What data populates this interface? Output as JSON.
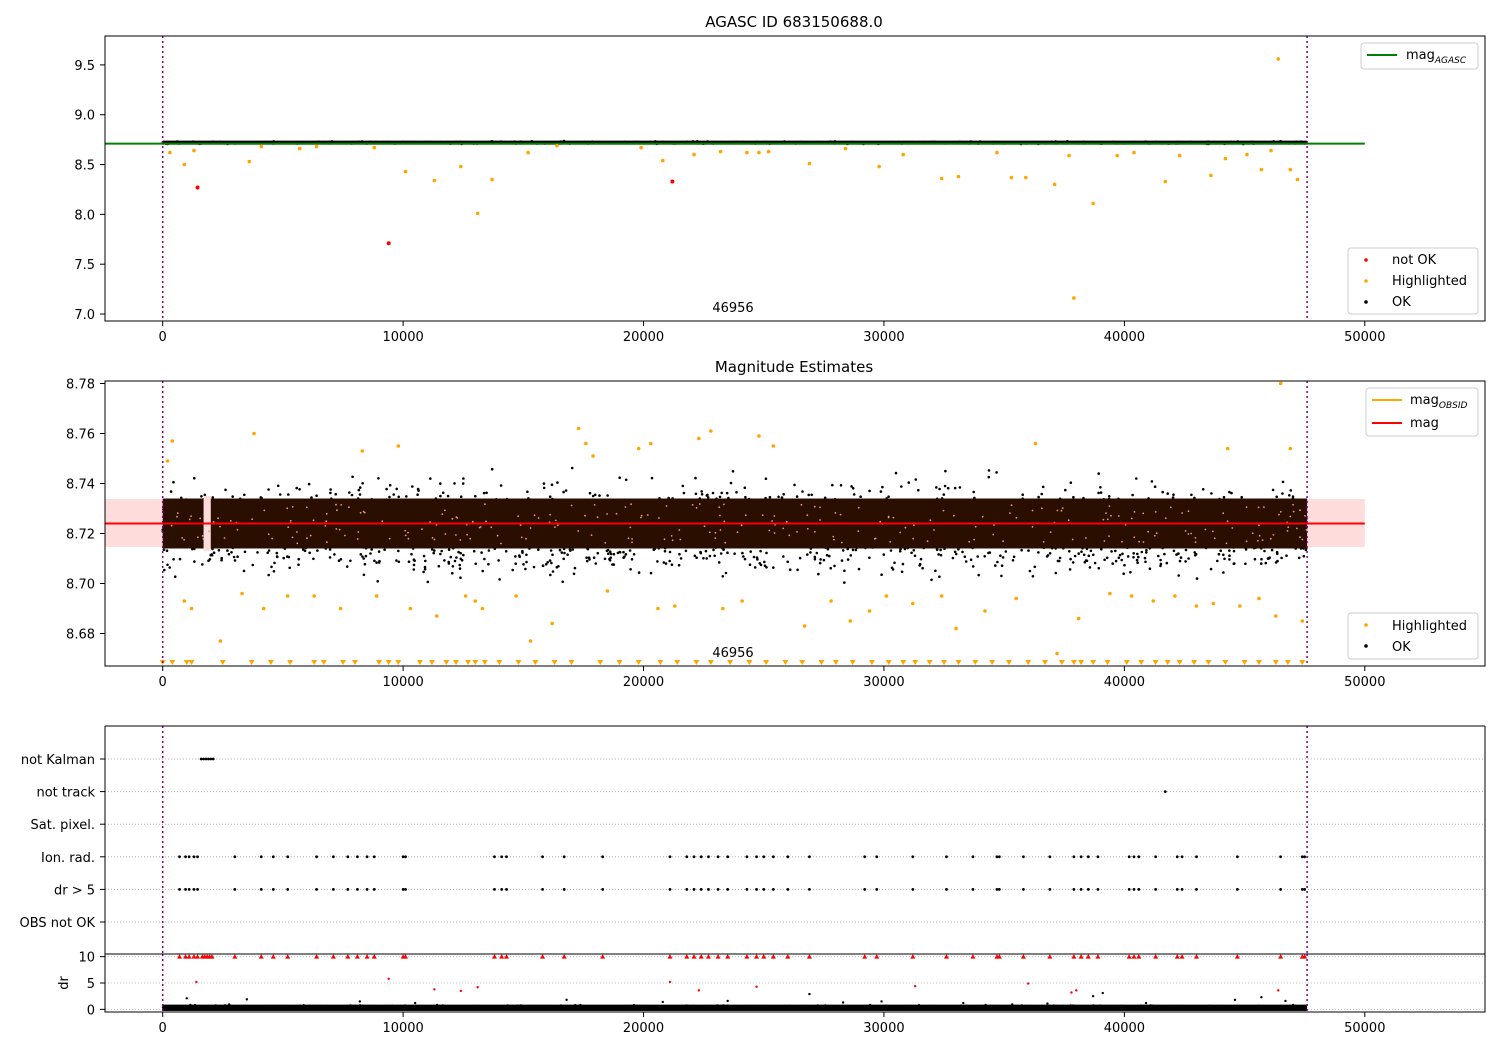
{
  "figure": {
    "marker_label": "46956",
    "vline_x": [
      0,
      47600
    ]
  },
  "chart_data": [
    {
      "type": "scatter",
      "title": "AGASC ID 683150688.0",
      "xlim": [
        -2400,
        55000
      ],
      "ylim": [
        6.93,
        9.79
      ],
      "xticks": [
        0,
        10000,
        20000,
        30000,
        40000,
        50000
      ],
      "yticks": [
        7.0,
        7.5,
        8.0,
        8.5,
        9.0,
        9.5
      ],
      "ytick_labels": [
        "7.0",
        "7.5",
        "8.0",
        "8.5",
        "9.0",
        "9.5"
      ],
      "band": {
        "y": 8.72,
        "x": [
          0,
          47600
        ],
        "width": 0.02,
        "color": "#000000"
      },
      "hline": {
        "y": 8.71,
        "x": [
          -2400,
          50000
        ],
        "color": "#008000",
        "name": "mag_AGASC"
      },
      "series": [
        {
          "name": "not OK",
          "color": "#ff0000",
          "x": [
            1450,
            9400,
            21200
          ],
          "y": [
            8.27,
            7.71,
            8.33
          ]
        },
        {
          "name": "Highlighted",
          "color": "#ffa500",
          "x": [
            300,
            900,
            1300,
            3600,
            4100,
            5700,
            6400,
            8800,
            10100,
            11300,
            12400,
            13100,
            13700,
            15200,
            16400,
            19900,
            20800,
            22100,
            23200,
            24300,
            24800,
            25200,
            26900,
            28400,
            29800,
            30800,
            32400,
            33100,
            34700,
            35300,
            35900,
            37100,
            37700,
            37900,
            38700,
            39700,
            40400,
            41700,
            42300,
            43600,
            44200,
            45100,
            45700,
            46100,
            46400,
            46900,
            47200
          ],
          "y": [
            8.62,
            8.5,
            8.64,
            8.53,
            8.68,
            8.66,
            8.68,
            8.67,
            8.43,
            8.34,
            8.48,
            8.01,
            8.35,
            8.62,
            8.69,
            8.67,
            8.54,
            8.6,
            8.63,
            8.62,
            8.62,
            8.63,
            8.51,
            8.66,
            8.48,
            8.6,
            8.36,
            8.38,
            8.62,
            8.37,
            8.37,
            8.3,
            8.59,
            7.16,
            8.11,
            8.59,
            8.62,
            8.33,
            8.59,
            8.39,
            8.56,
            8.6,
            8.45,
            8.64,
            9.56,
            8.45,
            8.35
          ]
        },
        {
          "name": "OK",
          "color": "#000000",
          "x": [],
          "y": []
        }
      ],
      "legend_lines": [
        {
          "name": "mag",
          "sub": "AGASC",
          "color": "#008000"
        }
      ],
      "legend_points": [
        "not OK",
        "Highlighted",
        "OK"
      ]
    },
    {
      "type": "scatter",
      "title": "Magnitude Estimates",
      "xlim": [
        -2400,
        55000
      ],
      "ylim": [
        8.667,
        8.781
      ],
      "xticks": [
        0,
        10000,
        20000,
        30000,
        40000,
        50000
      ],
      "yticks": [
        8.68,
        8.7,
        8.72,
        8.74,
        8.76,
        8.78
      ],
      "ytick_labels": [
        "8.68",
        "8.70",
        "8.72",
        "8.74",
        "8.76",
        "8.78"
      ],
      "band": {
        "y": 8.724,
        "x": [
          0,
          47600
        ],
        "width": 0.014,
        "color": "#2a0e00"
      },
      "shade": {
        "y": [
          8.7146,
          8.7338
        ],
        "x": [
          -2400,
          50000
        ],
        "color": "#ffdcdc"
      },
      "hline": {
        "y": 8.724,
        "x": [
          -2400,
          50000
        ],
        "color": "#ff0000",
        "name": "mag"
      },
      "series": [
        {
          "name": "Highlighted",
          "color": "#ffa500",
          "x": [
            200,
            400,
            900,
            1200,
            2400,
            3300,
            3800,
            4200,
            5200,
            6300,
            7400,
            8300,
            8900,
            9800,
            10300,
            11400,
            12600,
            13000,
            13300,
            14700,
            15300,
            16200,
            17300,
            17600,
            17900,
            18500,
            19800,
            20300,
            20600,
            21300,
            22300,
            22800,
            23300,
            24100,
            24800,
            25400,
            26700,
            27800,
            28600,
            29400,
            30100,
            31200,
            32400,
            33000,
            34200,
            35500,
            36300,
            37200,
            38100,
            39400,
            40300,
            41200,
            42100,
            43000,
            43700,
            44300,
            44800,
            45600,
            46300,
            46500,
            46900,
            47400
          ],
          "y": [
            8.749,
            8.757,
            8.693,
            8.69,
            8.677,
            8.696,
            8.76,
            8.69,
            8.695,
            8.695,
            8.69,
            8.753,
            8.695,
            8.755,
            8.69,
            8.687,
            8.695,
            8.693,
            8.69,
            8.695,
            8.677,
            8.684,
            8.762,
            8.756,
            8.751,
            8.697,
            8.754,
            8.756,
            8.69,
            8.691,
            8.758,
            8.761,
            8.69,
            8.693,
            8.759,
            8.755,
            8.683,
            8.693,
            8.685,
            8.689,
            8.695,
            8.692,
            8.695,
            8.682,
            8.689,
            8.694,
            8.756,
            8.672,
            8.686,
            8.696,
            8.695,
            8.693,
            8.695,
            8.691,
            8.692,
            8.754,
            8.691,
            8.694,
            8.687,
            8.78,
            8.754,
            8.685
          ]
        },
        {
          "name": "OK",
          "color": "#000000",
          "x": [],
          "y": []
        }
      ],
      "bottom_markers": {
        "color": "#ffa500",
        "x": [
          0,
          400,
          1000,
          1200,
          2500,
          3700,
          4500,
          5300,
          6300,
          6700,
          7500,
          8000,
          9000,
          9400,
          9800,
          10700,
          11200,
          11800,
          12200,
          12700,
          13000,
          13400,
          14000,
          14800,
          15500,
          16300,
          17000,
          18200,
          19000,
          19800,
          20700,
          21400,
          22200,
          22800,
          23600,
          24400,
          25100,
          25900,
          26600,
          27400,
          28000,
          28700,
          29500,
          30200,
          30800,
          31300,
          31900,
          32500,
          33100,
          33800,
          34500,
          35200,
          36000,
          36700,
          37400,
          37900,
          38200,
          38700,
          39300,
          40100,
          40700,
          41300,
          41800,
          42300,
          42900,
          43500,
          44200,
          45000,
          45600,
          46300,
          46800,
          47400
        ]
      },
      "legend_lines": [
        {
          "name": "mag",
          "sub": "OBSID",
          "color": "#ffa500"
        },
        {
          "name": "mag",
          "sub": "",
          "color": "#ff0000"
        }
      ],
      "legend_points": [
        "Highlighted",
        "OK"
      ]
    },
    {
      "type": "scatter",
      "title": "",
      "xlim": [
        -2400,
        55000
      ],
      "categories": [
        "not Kalman",
        "not track",
        "Sat. pixel.",
        "Ion. rad.",
        "dr > 5",
        "OBS not OK"
      ],
      "flags": [
        {
          "name": "not Kalman",
          "x": [
            1600,
            1700,
            1800,
            1900,
            2000,
            2100
          ]
        },
        {
          "name": "not track",
          "x": [
            41700
          ]
        },
        {
          "name": "Sat. pixel.",
          "x": []
        },
        {
          "name": "Ion. rad.",
          "x": [
            700,
            950,
            1100,
            1300,
            1450,
            3000,
            4100,
            4600,
            5200,
            6400,
            7100,
            7700,
            8100,
            8500,
            8800,
            10000,
            10100,
            13800,
            14100,
            14300,
            15800,
            16700,
            18300,
            21100,
            21800,
            22100,
            22400,
            22700,
            23100,
            23500,
            24300,
            24700,
            25000,
            25400,
            26000,
            26900,
            29200,
            29700,
            31200,
            32600,
            33700,
            34700,
            34800,
            35800,
            36900,
            37900,
            38200,
            38500,
            38900,
            40200,
            40400,
            40600,
            41300,
            42200,
            42400,
            43000,
            44700,
            46500,
            47400,
            47500
          ]
        },
        {
          "name": "dr > 5",
          "x": [
            700,
            950,
            1100,
            1300,
            1450,
            3000,
            4100,
            4600,
            5200,
            6400,
            7100,
            7700,
            8100,
            8500,
            8800,
            10000,
            10100,
            13800,
            14100,
            14300,
            15800,
            16700,
            18300,
            21100,
            21800,
            22100,
            22400,
            22700,
            23100,
            23500,
            24300,
            24700,
            25000,
            25400,
            26000,
            26900,
            29200,
            29700,
            31200,
            32600,
            33700,
            34700,
            34800,
            35800,
            36900,
            37900,
            38200,
            38500,
            38900,
            40200,
            40400,
            40600,
            41300,
            42200,
            42400,
            43000,
            44700,
            46500,
            47400,
            47500
          ]
        },
        {
          "name": "OBS not OK",
          "x": []
        }
      ]
    },
    {
      "type": "scatter",
      "title": "",
      "ylabel": "dr",
      "xlim": [
        -2400,
        55000
      ],
      "ylim": [
        -0.5,
        10.5
      ],
      "xticks": [
        0,
        10000,
        20000,
        30000,
        40000,
        50000
      ],
      "yticks": [
        0,
        5,
        10
      ],
      "ytick_labels": [
        "0",
        "5",
        "10"
      ],
      "band": {
        "y": 0.3,
        "x": [
          0,
          47600
        ],
        "width": 0.6,
        "color": "#000000"
      },
      "series": [
        {
          "name": "dr > 5",
          "color": "#ff0000",
          "x": [
            700,
            950,
            1100,
            1300,
            1450,
            1650,
            1750,
            1850,
            1950,
            2050,
            3000,
            4100,
            4600,
            5200,
            6400,
            7100,
            7700,
            8100,
            8500,
            8800,
            10000,
            10100,
            13800,
            14100,
            14300,
            15800,
            16700,
            18300,
            21100,
            21800,
            22100,
            22400,
            22700,
            23100,
            23500,
            24300,
            24700,
            25000,
            25400,
            26000,
            26900,
            29200,
            29700,
            31200,
            32600,
            33700,
            34700,
            34800,
            35800,
            36900,
            37900,
            38200,
            38500,
            38900,
            40200,
            40400,
            40600,
            41300,
            42200,
            42400,
            43000,
            44700,
            46500,
            47400,
            47500,
            9400,
            1400,
            21100,
            11300,
            12400,
            13100,
            22300,
            24700,
            31300,
            37800,
            38000,
            36000,
            46400
          ],
          "y": [
            10,
            10,
            10,
            10,
            10,
            10,
            10,
            10,
            10,
            10,
            10,
            10,
            10,
            10,
            10,
            10,
            10,
            10,
            10,
            10,
            10,
            10,
            10,
            10,
            10,
            10,
            10,
            10,
            10,
            10,
            10,
            10,
            10,
            10,
            10,
            10,
            10,
            10,
            10,
            10,
            10,
            10,
            10,
            10,
            10,
            10,
            10,
            10,
            10,
            10,
            10,
            10,
            10,
            10,
            10,
            10,
            10,
            10,
            10,
            10,
            10,
            10,
            10,
            10,
            10,
            5.8,
            5.2,
            5.2,
            3.8,
            3.5,
            4.2,
            3.6,
            4.3,
            4.4,
            3.2,
            3.6,
            4.9,
            3.6
          ]
        },
        {
          "name": "dr",
          "color": "#000000",
          "x": [
            1000,
            3500,
            8200,
            10500,
            16800,
            20800,
            23500,
            26900,
            28300,
            29900,
            33300,
            36800,
            38700,
            39100,
            40900,
            44600,
            45700,
            46700
          ],
          "y": [
            2.1,
            1.9,
            1.5,
            1.2,
            1.8,
            1.4,
            1.6,
            2.9,
            1.3,
            1.5,
            1.2,
            1.1,
            2.5,
            3.1,
            1.2,
            1.8,
            2.3,
            1.6
          ]
        }
      ]
    }
  ]
}
